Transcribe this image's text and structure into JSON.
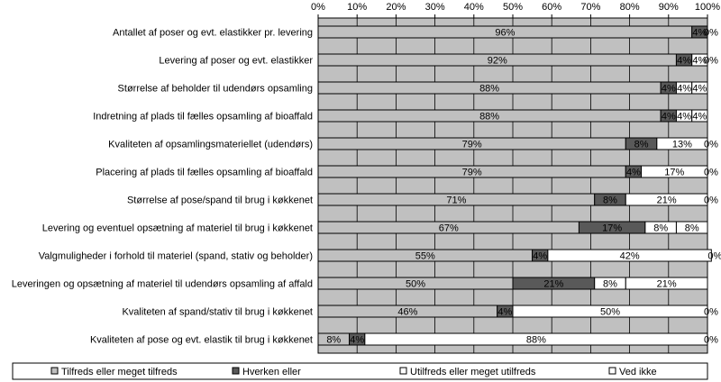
{
  "chart_data": {
    "type": "bar",
    "orientation": "horizontal",
    "stacked": "percent",
    "xlim": [
      0,
      100
    ],
    "x_ticks": [
      "0%",
      "10%",
      "20%",
      "30%",
      "40%",
      "50%",
      "60%",
      "70%",
      "80%",
      "90%",
      "100%"
    ],
    "x_axis_position": "top",
    "grid": true,
    "legend_position": "bottom",
    "categories": [
      "Antallet af poser og evt. elastikker pr. levering",
      "Levering af poser og evt. elastikker",
      "Størrelse af beholder til udendørs opsamling",
      "Indretning af plads til fælles opsamling af bioaffald",
      "Kvaliteten af opsamlingsmateriellet (udendørs)",
      "Placering af plads til fælles opsamling af bioaffald",
      "Størrelse af pose/spand til brug i køkkenet",
      "Levering og eventuel opsætning af materiel til brug i køkkenet",
      "Valgmuligheder i forhold til materiel (spand, stativ og beholder)",
      "Leveringen og opsætning af materiel til udendørs opsamling af affald",
      "Kvaliteten af spand/stativ til brug i køkkenet",
      "Kvaliteten af pose og evt. elastik til brug i køkkenet"
    ],
    "series": [
      {
        "name": "Tilfreds eller meget tilfreds",
        "color": "#c0c0c0",
        "values": [
          96,
          92,
          88,
          88,
          79,
          79,
          71,
          67,
          55,
          50,
          46,
          8
        ],
        "labels": [
          "96%",
          "92%",
          "88%",
          "88%",
          "79%",
          "79%",
          "71%",
          "67%",
          "55%",
          "50%",
          "46%",
          "8%"
        ]
      },
      {
        "name": "Hverken eller",
        "color": "#595959",
        "values": [
          4,
          4,
          4,
          4,
          8,
          4,
          8,
          17,
          4,
          21,
          4,
          4
        ],
        "labels": [
          "4%",
          "4%",
          "4%",
          "4%",
          "8%",
          "4%",
          "8%",
          "17%",
          "4%",
          "21%",
          "4%",
          "4%"
        ]
      },
      {
        "name": "Utilfreds eller meget utilfreds",
        "color": "#ffffff",
        "values": [
          0,
          4,
          4,
          4,
          13,
          17,
          21,
          8,
          42,
          8,
          50,
          88
        ],
        "labels": [
          "",
          "4%",
          "4%",
          "4%",
          "13%",
          "17%",
          "21%",
          "8%",
          "42%",
          "8%",
          "50%",
          "88%"
        ]
      },
      {
        "name": "Ved ikke",
        "color": "#ffffff",
        "values": [
          0,
          0,
          4,
          4,
          0,
          0,
          0,
          8,
          0,
          21,
          0,
          0
        ],
        "labels": [
          "0%",
          "0%",
          "4%",
          "4%",
          "0%",
          "0%",
          "0%",
          "8%",
          "0%",
          "21%",
          "0%",
          "0%"
        ]
      }
    ]
  }
}
